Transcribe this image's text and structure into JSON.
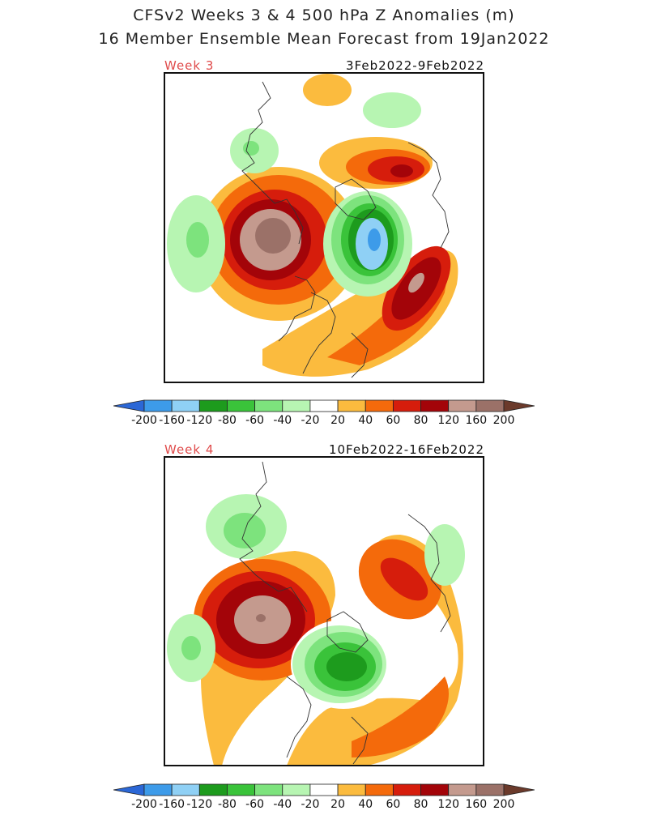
{
  "header": {
    "title_line1": "CFSv2 Weeks 3 & 4 500 hPa Z Anomalies (m)",
    "title_line2": "16 Member Ensemble Mean Forecast from 19Jan2022"
  },
  "panels": [
    {
      "week_label": "Week 3",
      "date_range": "3Feb2022-9Feb2022"
    },
    {
      "week_label": "Week 4",
      "date_range": "10Feb2022-16Feb2022"
    }
  ],
  "colorbar": {
    "tick_labels": [
      "-200",
      "-160",
      "-120",
      "-80",
      "-60",
      "-40",
      "-20",
      "20",
      "40",
      "60",
      "80",
      "120",
      "160",
      "200"
    ],
    "colors": [
      "#2b67d6",
      "#3d9be9",
      "#8fd0f5",
      "#1d9b1d",
      "#3ac33a",
      "#7de37d",
      "#b7f5b2",
      "#ffffff",
      "#fbbb3e",
      "#f46a0b",
      "#d61d0c",
      "#a30409",
      "#c49a8e",
      "#9b7168",
      "#6b3a2b"
    ]
  },
  "anomaly_colors": {
    "pos": [
      "#fbbb3e",
      "#f46a0b",
      "#d61d0c",
      "#a30409",
      "#c49a8e",
      "#9b7168"
    ],
    "neg": [
      "#b7f5b2",
      "#7de37d",
      "#3ac33a",
      "#1d9b1d",
      "#8fd0f5",
      "#3d9be9"
    ]
  }
}
